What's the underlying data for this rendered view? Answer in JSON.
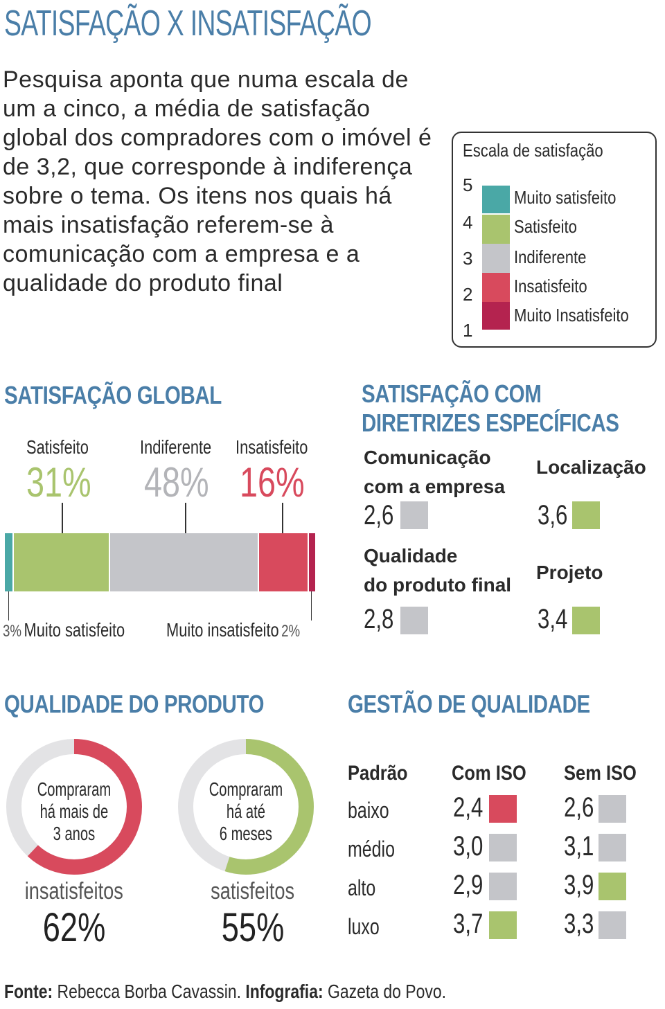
{
  "title": "SATISFAÇÃO X INSATISFAÇÃO",
  "intro": "Pesquisa aponta que numa escala de um a cinco, a média de satisfação global dos compradores com o imóvel é de 3,2, que corresponde à indiferença sobre o tema. Os itens nos quais há mais insatisfação referem-se à comunicação com a empresa e a qualidade do produto final",
  "colors": {
    "muito_satisfeito": "#4aa8a6",
    "satisfeito": "#a9c46e",
    "indiferente": "#c4c5c9",
    "insatisfeito": "#d84a5d",
    "muito_insatisfeito": "#b4234f",
    "title_blue": "#4a7ea8"
  },
  "scale": {
    "title": "Escala de satisfação",
    "numbers": [
      "5",
      "4",
      "3",
      "2",
      "1"
    ],
    "items": [
      {
        "label": "Muito satisfeito",
        "color": "#4aa8a6"
      },
      {
        "label": "Satisfeito",
        "color": "#a9c46e"
      },
      {
        "label": "Indiferente",
        "color": "#c4c5c9"
      },
      {
        "label": "Insatisfeito",
        "color": "#d84a5d"
      },
      {
        "label": "Muito Insatisfeito",
        "color": "#b4234f"
      }
    ]
  },
  "global": {
    "title": "SATISFAÇÃO GLOBAL",
    "satisfeito_label": "Satisfeito",
    "indiferente_label": "Indiferente",
    "insatisfeito_label": "Insatisfeito",
    "muito_satisfeito_label": "Muito satisfeito",
    "muito_insatisfeito_label": "Muito insatisfeito",
    "satisfeito_pct": "31%",
    "indiferente_pct": "48%",
    "insatisfeito_pct": "16%",
    "muito_satisfeito_pct": "3%",
    "muito_insatisfeito_pct": "2%"
  },
  "specific": {
    "title_line1": "SATISFAÇÃO COM",
    "title_line2": "DIRETRIZES ESPECÍFICAS",
    "items": [
      {
        "line1": "Comunicação",
        "line2": "com a empresa",
        "value": "2,6",
        "color": "#c4c5c9"
      },
      {
        "line1": "Localização",
        "line2": "",
        "value": "3,6",
        "color": "#a9c46e"
      },
      {
        "line1": "Qualidade",
        "line2": "do produto final",
        "value": "2,8",
        "color": "#c4c5c9"
      },
      {
        "line1": "Projeto",
        "line2": "",
        "value": "3,4",
        "color": "#a9c46e"
      }
    ]
  },
  "product": {
    "title": "QUALIDADE DO PRODUTO",
    "donuts": [
      {
        "line1": "Compraram",
        "line2": "há mais de",
        "line3": "3 anos",
        "word": "insatisfeitos",
        "pct": "62%",
        "fraction": 0.62,
        "color": "#d84a5d"
      },
      {
        "line1": "Compraram",
        "line2": "há até",
        "line3": "6 meses",
        "word": "satisfeitos",
        "pct": "55%",
        "fraction": 0.55,
        "color": "#a9c46e"
      }
    ]
  },
  "quality": {
    "title": "GESTÃO DE QUALIDADE",
    "headers": [
      "Padrão",
      "Com ISO",
      "Sem ISO"
    ],
    "rows": [
      {
        "label": "baixo",
        "com": "2,4",
        "com_color": "#d84a5d",
        "sem": "2,6",
        "sem_color": "#c4c5c9"
      },
      {
        "label": "médio",
        "com": "3,0",
        "com_color": "#c4c5c9",
        "sem": "3,1",
        "sem_color": "#c4c5c9"
      },
      {
        "label": "alto",
        "com": "2,9",
        "com_color": "#c4c5c9",
        "sem": "3,9",
        "sem_color": "#a9c46e"
      },
      {
        "label": "luxo",
        "com": "3,7",
        "com_color": "#a9c46e",
        "sem": "3,3",
        "sem_color": "#c4c5c9"
      }
    ]
  },
  "source": {
    "fonte_label": "Fonte:",
    "fonte": "Rebecca Borba Cavassin.",
    "info_label": "Infografia:",
    "info": "Gazeta do Povo."
  },
  "chart_data": [
    {
      "type": "bar",
      "title": "SATISFAÇÃO GLOBAL",
      "orientation": "horizontal-stacked",
      "categories": [
        "Muito satisfeito",
        "Satisfeito",
        "Indiferente",
        "Insatisfeito",
        "Muito insatisfeito"
      ],
      "values": [
        3,
        31,
        48,
        16,
        2
      ]
    },
    {
      "type": "table",
      "title": "SATISFAÇÃO COM DIRETRIZES ESPECÍFICAS",
      "categories": [
        "Comunicação com a empresa",
        "Localização",
        "Qualidade do produto final",
        "Projeto"
      ],
      "values": [
        2.6,
        3.6,
        2.8,
        3.4
      ]
    },
    {
      "type": "pie",
      "title": "QUALIDADE DO PRODUTO",
      "series": [
        {
          "name": "insatisfeitos",
          "values": [
            62
          ]
        },
        {
          "name": "satisfeitos",
          "values": [
            55
          ]
        }
      ]
    },
    {
      "type": "table",
      "title": "GESTÃO DE QUALIDADE",
      "categories": [
        "baixo",
        "médio",
        "alto",
        "luxo"
      ],
      "series": [
        {
          "name": "Com ISO",
          "values": [
            2.4,
            3.0,
            2.9,
            3.7
          ]
        },
        {
          "name": "Sem ISO",
          "values": [
            2.6,
            3.1,
            3.9,
            3.3
          ]
        }
      ]
    }
  ]
}
